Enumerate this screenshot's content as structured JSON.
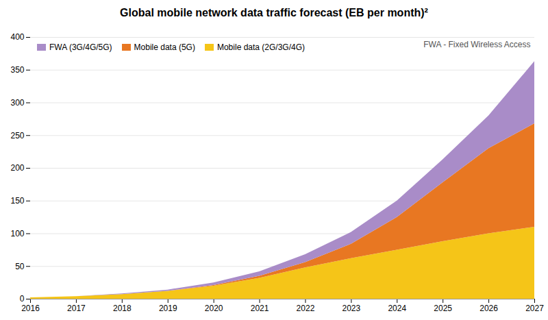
{
  "chart_data": {
    "type": "area",
    "stacked": true,
    "title": "Global mobile network data traffic forecast (EB per month)²",
    "x": [
      2016,
      2017,
      2018,
      2019,
      2020,
      2021,
      2022,
      2023,
      2024,
      2025,
      2026,
      2027
    ],
    "series": [
      {
        "name": "Mobile data (2G/3G/4G)",
        "color": "#f5c518",
        "values": [
          2,
          4,
          7,
          12,
          20,
          32,
          48,
          62,
          75,
          88,
          100,
          110
        ]
      },
      {
        "name": "Mobile data (5G)",
        "color": "#e87722",
        "values": [
          0,
          0,
          0,
          0,
          1,
          3,
          8,
          22,
          50,
          90,
          130,
          158
        ]
      },
      {
        "name": "FWA (3G/4G/5G)",
        "color": "#a98cc8",
        "values": [
          0,
          0,
          1,
          2,
          4,
          7,
          12,
          18,
          25,
          35,
          50,
          95
        ]
      }
    ],
    "xlim": [
      2016,
      2027
    ],
    "xticks": [
      2016,
      2017,
      2018,
      2019,
      2020,
      2021,
      2022,
      2023,
      2024,
      2025,
      2026,
      2027
    ],
    "ylim": [
      0,
      400
    ],
    "yticks": [
      0,
      50,
      100,
      150,
      200,
      250,
      300,
      350,
      400
    ],
    "grid": true,
    "legend": "upper left",
    "annotation": "FWA - Fixed Wireless Access"
  }
}
